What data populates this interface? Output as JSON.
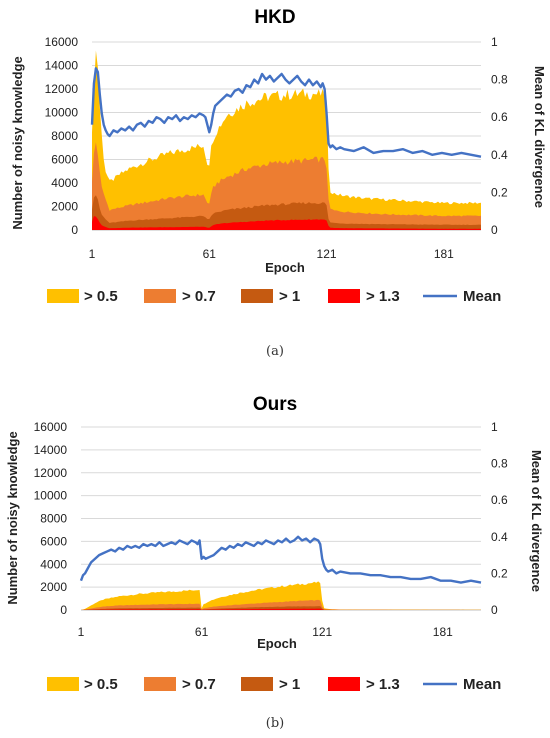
{
  "captions": [
    "(a)",
    "(b)"
  ],
  "chart_data": [
    {
      "type": "area",
      "title": "HKD",
      "xlabel": "Epoch",
      "ylabel": "Number of noisy knowledge",
      "y2label": "Mean of KL divergence",
      "xticks": [
        1,
        61,
        121,
        181
      ],
      "xlim": [
        1,
        200
      ],
      "ylim": [
        0,
        16000
      ],
      "yticks": [
        0,
        2000,
        4000,
        6000,
        8000,
        10000,
        12000,
        14000,
        16000
      ],
      "y2lim": [
        0,
        1
      ],
      "y2ticks": [
        0,
        0.2,
        0.4,
        0.6,
        0.8,
        1
      ],
      "legend_position": "bottom",
      "series": [
        {
          "name": "> 0.5",
          "color": "#FFC000",
          "type": "area",
          "x": [
            1,
            2,
            3,
            4,
            5,
            6,
            7,
            8,
            10,
            12,
            15,
            20,
            30,
            40,
            50,
            58,
            60,
            61,
            62,
            63,
            65,
            70,
            80,
            90,
            100,
            110,
            115,
            119,
            120,
            121,
            122,
            123,
            125,
            130,
            140,
            150,
            160,
            170,
            180,
            190,
            200
          ],
          "values": [
            8000,
            12500,
            15200,
            14000,
            10500,
            8000,
            6200,
            5000,
            4100,
            4300,
            4700,
            5200,
            5900,
            6500,
            6900,
            7200,
            5700,
            5700,
            7000,
            7800,
            8500,
            9800,
            10800,
            11300,
            11500,
            11600,
            11600,
            11500,
            11500,
            10800,
            5000,
            3300,
            3100,
            2900,
            2700,
            2600,
            2500,
            2400,
            2300,
            2300,
            2300
          ]
        },
        {
          "name": "> 0.7",
          "color": "#ED7D31",
          "type": "area",
          "x": [
            1,
            2,
            3,
            4,
            5,
            6,
            8,
            10,
            15,
            20,
            30,
            40,
            50,
            58,
            60,
            61,
            62,
            63,
            65,
            70,
            80,
            90,
            100,
            110,
            115,
            119,
            120,
            121,
            122,
            123,
            125,
            130,
            140,
            150,
            160,
            170,
            180,
            190,
            200
          ],
          "values": [
            4000,
            6500,
            7500,
            6500,
            4800,
            3600,
            2600,
            1700,
            1900,
            2100,
            2400,
            2700,
            2900,
            3000,
            2300,
            2300,
            3000,
            3600,
            4000,
            4500,
            5200,
            5600,
            5800,
            5900,
            6000,
            6000,
            6000,
            5400,
            2500,
            1800,
            1650,
            1550,
            1450,
            1350,
            1300,
            1250,
            1200,
            1200,
            1200
          ]
        },
        {
          "name": "> 1",
          "color": "#C55A11",
          "type": "area",
          "x": [
            1,
            2,
            3,
            4,
            5,
            6,
            8,
            10,
            15,
            20,
            30,
            40,
            50,
            58,
            60,
            61,
            62,
            63,
            65,
            70,
            80,
            90,
            100,
            110,
            115,
            119,
            120,
            121,
            122,
            123,
            125,
            130,
            140,
            150,
            160,
            170,
            180,
            190,
            200
          ],
          "values": [
            1800,
            2800,
            3000,
            2500,
            1800,
            1300,
            900,
            600,
            700,
            800,
            900,
            1000,
            1100,
            1200,
            900,
            900,
            1200,
            1400,
            1500,
            1700,
            1900,
            2100,
            2200,
            2300,
            2300,
            2300,
            2300,
            2100,
            900,
            650,
            600,
            550,
            520,
            500,
            480,
            460,
            450,
            440,
            440
          ]
        },
        {
          "name": "> 1.3",
          "color": "#FF0000",
          "type": "area",
          "x": [
            1,
            2,
            3,
            4,
            5,
            6,
            8,
            10,
            15,
            20,
            30,
            40,
            50,
            58,
            60,
            61,
            62,
            63,
            65,
            70,
            80,
            90,
            100,
            110,
            115,
            119,
            120,
            121,
            122,
            123,
            125,
            130,
            140,
            150,
            160,
            170,
            180,
            190,
            200
          ],
          "values": [
            700,
            1200,
            1100,
            900,
            600,
            400,
            250,
            150,
            180,
            200,
            220,
            240,
            260,
            280,
            200,
            200,
            300,
            400,
            500,
            600,
            700,
            800,
            850,
            880,
            900,
            900,
            900,
            800,
            350,
            200,
            170,
            150,
            140,
            130,
            120,
            110,
            100,
            100,
            100
          ]
        },
        {
          "name": "Mean",
          "color": "#4472C4",
          "type": "line",
          "axis": "right",
          "x": [
            1,
            2,
            3,
            4,
            5,
            6,
            7,
            8,
            9,
            10,
            12,
            14,
            16,
            18,
            20,
            22,
            24,
            26,
            28,
            30,
            32,
            34,
            36,
            38,
            40,
            42,
            44,
            46,
            48,
            50,
            52,
            54,
            56,
            58,
            59,
            60,
            61,
            62,
            63,
            64,
            66,
            68,
            70,
            72,
            74,
            76,
            78,
            80,
            82,
            84,
            86,
            88,
            90,
            92,
            94,
            96,
            98,
            100,
            102,
            104,
            106,
            108,
            110,
            112,
            114,
            116,
            118,
            119,
            120,
            121,
            122,
            123,
            124,
            126,
            128,
            130,
            135,
            140,
            145,
            150,
            155,
            160,
            165,
            170,
            175,
            180,
            185,
            190,
            195,
            200
          ],
          "values": [
            0.56,
            0.78,
            0.86,
            0.84,
            0.72,
            0.62,
            0.56,
            0.53,
            0.51,
            0.5,
            0.53,
            0.52,
            0.54,
            0.53,
            0.55,
            0.53,
            0.56,
            0.57,
            0.55,
            0.58,
            0.57,
            0.6,
            0.59,
            0.57,
            0.6,
            0.59,
            0.61,
            0.58,
            0.6,
            0.59,
            0.61,
            0.6,
            0.62,
            0.61,
            0.6,
            0.56,
            0.52,
            0.56,
            0.62,
            0.66,
            0.68,
            0.7,
            0.72,
            0.71,
            0.74,
            0.75,
            0.73,
            0.77,
            0.76,
            0.8,
            0.78,
            0.83,
            0.8,
            0.82,
            0.79,
            0.81,
            0.83,
            0.8,
            0.78,
            0.8,
            0.82,
            0.79,
            0.77,
            0.8,
            0.77,
            0.79,
            0.76,
            0.78,
            0.75,
            0.62,
            0.46,
            0.44,
            0.45,
            0.43,
            0.44,
            0.43,
            0.42,
            0.44,
            0.41,
            0.42,
            0.42,
            0.43,
            0.41,
            0.42,
            0.4,
            0.41,
            0.4,
            0.41,
            0.4,
            0.39
          ]
        }
      ]
    },
    {
      "type": "area",
      "title": "Ours",
      "xlabel": "Epoch",
      "ylabel": "Number of noisy knowledge",
      "y2label": "Mean of KL divergence",
      "xticks": [
        1,
        61,
        121,
        181
      ],
      "xlim": [
        1,
        200
      ],
      "ylim": [
        0,
        16000
      ],
      "yticks": [
        0,
        2000,
        4000,
        6000,
        8000,
        10000,
        12000,
        14000,
        16000
      ],
      "y2lim": [
        0,
        1
      ],
      "y2ticks": [
        0,
        0.2,
        0.4,
        0.6,
        0.8,
        1
      ],
      "legend_position": "bottom",
      "series": [
        {
          "name": "> 0.5",
          "color": "#FFC000",
          "type": "area",
          "x": [
            1,
            3,
            5,
            8,
            12,
            20,
            30,
            40,
            50,
            58,
            60,
            61,
            62,
            65,
            70,
            80,
            90,
            100,
            110,
            118,
            120,
            121,
            122,
            125,
            130,
            200
          ],
          "values": [
            0,
            100,
            300,
            600,
            900,
            1200,
            1400,
            1550,
            1650,
            1750,
            1800,
            150,
            500,
            800,
            1100,
            1500,
            1800,
            2050,
            2250,
            2400,
            2400,
            800,
            150,
            80,
            40,
            20
          ]
        },
        {
          "name": "> 0.7",
          "color": "#ED7D31",
          "type": "area",
          "x": [
            1,
            3,
            5,
            8,
            12,
            20,
            30,
            40,
            50,
            58,
            60,
            61,
            62,
            65,
            70,
            80,
            90,
            100,
            110,
            118,
            120,
            121,
            122,
            125,
            130,
            200
          ],
          "values": [
            0,
            40,
            100,
            200,
            300,
            400,
            450,
            500,
            520,
            540,
            550,
            60,
            150,
            250,
            350,
            480,
            600,
            700,
            800,
            850,
            850,
            300,
            60,
            30,
            20,
            10
          ]
        },
        {
          "name": "> 1",
          "color": "#C55A11",
          "type": "area",
          "x": [
            1,
            5,
            12,
            20,
            40,
            60,
            61,
            62,
            70,
            90,
            110,
            120,
            121,
            122,
            130,
            200
          ],
          "values": [
            0,
            40,
            100,
            150,
            180,
            200,
            20,
            60,
            130,
            250,
            320,
            330,
            120,
            20,
            10,
            5
          ]
        },
        {
          "name": "> 1.3",
          "color": "#FF0000",
          "type": "area",
          "x": [
            1,
            5,
            12,
            20,
            40,
            60,
            61,
            62,
            70,
            90,
            110,
            120,
            121,
            122,
            130,
            200
          ],
          "values": [
            0,
            15,
            30,
            50,
            60,
            70,
            10,
            20,
            50,
            90,
            110,
            120,
            40,
            10,
            5,
            2
          ]
        },
        {
          "name": "Mean",
          "color": "#4472C4",
          "type": "line",
          "axis": "right",
          "x": [
            1,
            2,
            3,
            4,
            5,
            6,
            8,
            10,
            12,
            14,
            16,
            18,
            20,
            22,
            24,
            26,
            28,
            30,
            32,
            34,
            36,
            38,
            40,
            42,
            44,
            46,
            48,
            50,
            52,
            54,
            56,
            58,
            59,
            60,
            61,
            62,
            63,
            65,
            67,
            69,
            71,
            73,
            75,
            77,
            79,
            81,
            83,
            85,
            87,
            89,
            91,
            93,
            95,
            97,
            99,
            101,
            103,
            105,
            107,
            109,
            111,
            113,
            115,
            117,
            119,
            120,
            121,
            122,
            123,
            124,
            126,
            128,
            130,
            135,
            140,
            145,
            150,
            155,
            160,
            165,
            170,
            175,
            180,
            185,
            190,
            195,
            200
          ],
          "values": [
            0.16,
            0.19,
            0.2,
            0.22,
            0.24,
            0.26,
            0.28,
            0.3,
            0.31,
            0.32,
            0.33,
            0.32,
            0.34,
            0.33,
            0.35,
            0.34,
            0.35,
            0.34,
            0.36,
            0.35,
            0.36,
            0.35,
            0.37,
            0.35,
            0.36,
            0.37,
            0.36,
            0.38,
            0.37,
            0.36,
            0.38,
            0.37,
            0.36,
            0.38,
            0.28,
            0.29,
            0.28,
            0.29,
            0.3,
            0.32,
            0.34,
            0.33,
            0.35,
            0.34,
            0.36,
            0.35,
            0.37,
            0.36,
            0.35,
            0.37,
            0.36,
            0.38,
            0.37,
            0.36,
            0.38,
            0.37,
            0.39,
            0.37,
            0.38,
            0.4,
            0.38,
            0.39,
            0.37,
            0.39,
            0.38,
            0.36,
            0.28,
            0.24,
            0.22,
            0.21,
            0.22,
            0.2,
            0.21,
            0.2,
            0.2,
            0.19,
            0.19,
            0.18,
            0.18,
            0.17,
            0.17,
            0.18,
            0.16,
            0.16,
            0.15,
            0.16,
            0.15
          ]
        }
      ]
    }
  ]
}
